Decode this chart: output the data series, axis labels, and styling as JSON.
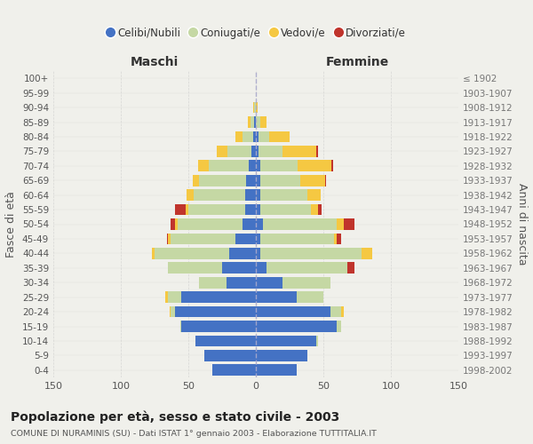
{
  "age_groups": [
    "0-4",
    "5-9",
    "10-14",
    "15-19",
    "20-24",
    "25-29",
    "30-34",
    "35-39",
    "40-44",
    "45-49",
    "50-54",
    "55-59",
    "60-64",
    "65-69",
    "70-74",
    "75-79",
    "80-84",
    "85-89",
    "90-94",
    "95-99",
    "100+"
  ],
  "birth_years": [
    "1998-2002",
    "1993-1997",
    "1988-1992",
    "1983-1987",
    "1978-1982",
    "1973-1977",
    "1968-1972",
    "1963-1967",
    "1958-1962",
    "1953-1957",
    "1948-1952",
    "1943-1947",
    "1938-1942",
    "1933-1937",
    "1928-1932",
    "1923-1927",
    "1918-1922",
    "1913-1917",
    "1908-1912",
    "1903-1907",
    "≤ 1902"
  ],
  "maschi": {
    "celibi": [
      32,
      38,
      45,
      55,
      60,
      55,
      22,
      25,
      20,
      15,
      10,
      8,
      8,
      7,
      5,
      3,
      2,
      1,
      0,
      0,
      0
    ],
    "coniugati": [
      0,
      0,
      0,
      1,
      3,
      10,
      20,
      40,
      55,
      48,
      48,
      42,
      38,
      35,
      30,
      18,
      8,
      3,
      1,
      0,
      0
    ],
    "vedovi": [
      0,
      0,
      0,
      0,
      1,
      2,
      0,
      0,
      2,
      2,
      2,
      2,
      5,
      5,
      8,
      8,
      5,
      2,
      1,
      0,
      0
    ],
    "divorziati": [
      0,
      0,
      0,
      0,
      0,
      0,
      0,
      0,
      0,
      1,
      3,
      8,
      0,
      0,
      0,
      0,
      0,
      0,
      0,
      0,
      0
    ]
  },
  "femmine": {
    "nubili": [
      30,
      38,
      45,
      60,
      55,
      30,
      20,
      8,
      3,
      3,
      5,
      3,
      3,
      3,
      3,
      2,
      2,
      0,
      0,
      0,
      0
    ],
    "coniugate": [
      0,
      0,
      1,
      3,
      8,
      20,
      35,
      60,
      75,
      55,
      55,
      38,
      35,
      30,
      28,
      18,
      8,
      3,
      0,
      0,
      0
    ],
    "vedove": [
      0,
      0,
      0,
      0,
      2,
      0,
      0,
      0,
      8,
      2,
      5,
      5,
      10,
      18,
      25,
      25,
      15,
      5,
      1,
      0,
      0
    ],
    "divorziate": [
      0,
      0,
      0,
      0,
      0,
      0,
      0,
      5,
      0,
      3,
      8,
      3,
      0,
      1,
      1,
      1,
      0,
      0,
      0,
      0,
      0
    ]
  },
  "colors": {
    "celibi_nubili": "#4472c4",
    "coniugati": "#c5d8a4",
    "vedovi": "#f5c842",
    "divorziati": "#c0342c"
  },
  "xlim": 150,
  "title": "Popolazione per età, sesso e stato civile - 2003",
  "subtitle": "COMUNE DI NURAMINIS (SU) - Dati ISTAT 1° gennaio 2003 - Elaborazione TUTTITALIA.IT",
  "ylabel": "Fasce di età",
  "ylabel_right": "Anni di nascita",
  "background_color": "#f0f0eb"
}
